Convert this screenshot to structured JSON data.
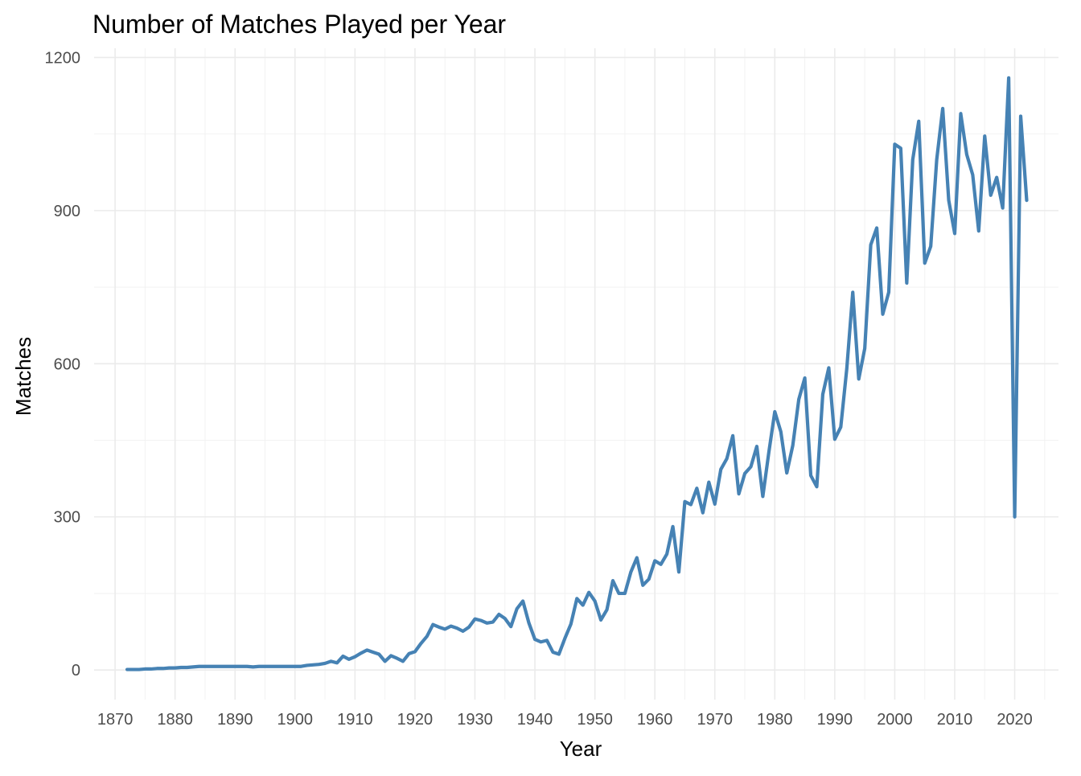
{
  "chart_data": {
    "type": "line",
    "title": "Number of Matches Played per Year",
    "xlabel": "Year",
    "ylabel": "Matches",
    "xlim": [
      1866,
      1303.5
    ],
    "ylim": [
      -58,
      1218
    ],
    "x_ticks": [
      1870,
      1880,
      1890,
      1900,
      1910,
      1920,
      1930,
      1940,
      1950,
      1960,
      1970,
      1980,
      1990,
      2000,
      2010,
      2020
    ],
    "y_ticks": [
      0,
      300,
      600,
      900,
      1200
    ],
    "grid": true,
    "legend": "none",
    "series_color": "#4682b4",
    "x": [
      1872,
      1873,
      1874,
      1875,
      1876,
      1877,
      1878,
      1879,
      1880,
      1881,
      1882,
      1883,
      1884,
      1885,
      1886,
      1887,
      1888,
      1889,
      1890,
      1891,
      1892,
      1893,
      1894,
      1895,
      1896,
      1897,
      1898,
      1899,
      1900,
      1901,
      1902,
      1903,
      1904,
      1905,
      1906,
      1907,
      1908,
      1909,
      1910,
      1911,
      1912,
      1913,
      1914,
      1915,
      1916,
      1917,
      1918,
      1919,
      1920,
      1921,
      1922,
      1923,
      1924,
      1925,
      1926,
      1927,
      1928,
      1929,
      1930,
      1931,
      1932,
      1933,
      1934,
      1935,
      1936,
      1937,
      1938,
      1939,
      1940,
      1941,
      1942,
      1943,
      1944,
      1945,
      1946,
      1947,
      1948,
      1949,
      1950,
      1951,
      1952,
      1953,
      1954,
      1955,
      1956,
      1957,
      1958,
      1959,
      1960,
      1961,
      1962,
      1963,
      1964,
      1965,
      1966,
      1967,
      1968,
      1969,
      1970,
      1971,
      1972,
      1973,
      1974,
      1975,
      1976,
      1977,
      1978,
      1979,
      1980,
      1981,
      1982,
      1983,
      1984,
      1985,
      1986,
      1987,
      1988,
      1989,
      1990,
      1991,
      1992,
      1993,
      1994,
      1995,
      1996,
      1997,
      1998,
      1999,
      2000,
      2001,
      2002,
      2003,
      2004,
      2005,
      2006,
      2007,
      2008,
      2009,
      2010,
      2011,
      2012,
      2013,
      2014,
      2015,
      2016,
      2017,
      2018,
      2019,
      2020,
      2021,
      2022
    ],
    "values": [
      1,
      1,
      1,
      2,
      2,
      3,
      3,
      4,
      4,
      5,
      5,
      6,
      7,
      7,
      7,
      7,
      7,
      7,
      7,
      7,
      7,
      6,
      7,
      7,
      7,
      7,
      7,
      7,
      7,
      7,
      9,
      10,
      11,
      13,
      17,
      14,
      27,
      21,
      26,
      33,
      39,
      35,
      31,
      17,
      28,
      23,
      17,
      32,
      36,
      52,
      66,
      89,
      84,
      80,
      86,
      82,
      76,
      84,
      100,
      97,
      92,
      94,
      109,
      101,
      85,
      120,
      135,
      92,
      60,
      55,
      58,
      35,
      31,
      62,
      90,
      140,
      127,
      152,
      135,
      98,
      118,
      175,
      150,
      150,
      192,
      220,
      166,
      178,
      214,
      207,
      227,
      281,
      192,
      330,
      324,
      356,
      308,
      368,
      325,
      393,
      414,
      459,
      345,
      385,
      398,
      438,
      340,
      426,
      506,
      467,
      386,
      440,
      530,
      572,
      381,
      359,
      540,
      592,
      452,
      476,
      590,
      740,
      570,
      630,
      833,
      866,
      697,
      740,
      1030,
      1022,
      758,
      1000,
      1075,
      797,
      830,
      1000,
      1100,
      920,
      855,
      1090,
      1010,
      970,
      860,
      1046,
      930,
      965,
      905,
      1160,
      300,
      1085,
      920
    ]
  }
}
